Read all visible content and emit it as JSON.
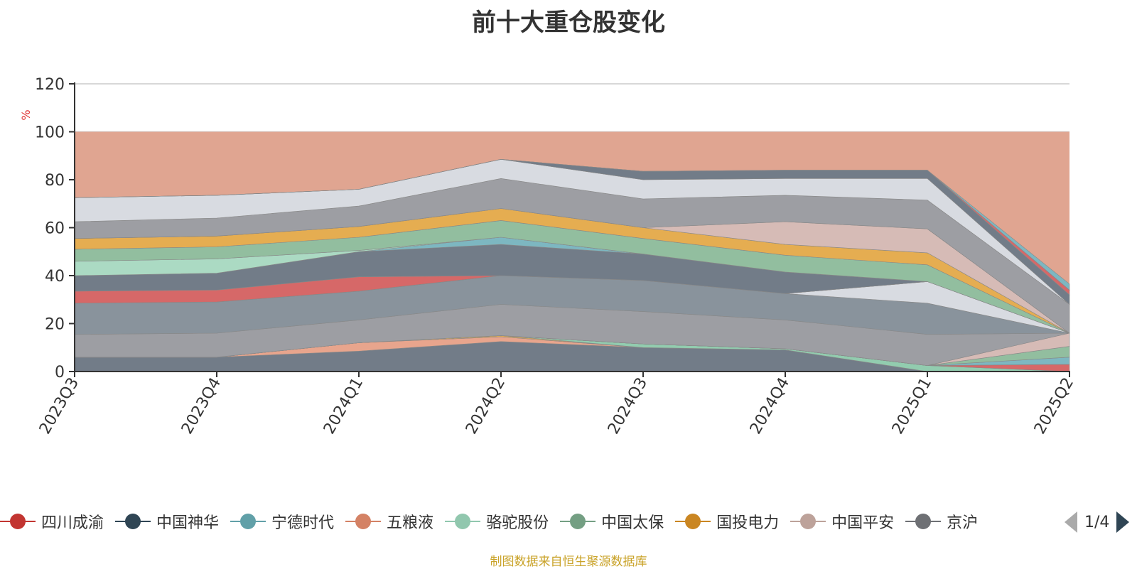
{
  "chart_data": {
    "type": "area",
    "title": "前十大重仓股变化",
    "ylabel": "%",
    "ylim": [
      0,
      120
    ],
    "yticks": [
      0,
      20,
      40,
      60,
      80,
      100,
      120
    ],
    "categories": [
      "2023Q3",
      "2023Q4",
      "2024Q1",
      "2024Q2",
      "2024Q3",
      "2024Q4",
      "2025Q1",
      "2025Q2"
    ],
    "grid": true,
    "stacked": true,
    "background_band": {
      "from": 0,
      "to": 100,
      "color": "#e0a591"
    },
    "series": [
      {
        "name": "",
        "color": "#6e7b87",
        "values": [
          6,
          6,
          8.5,
          12.5,
          10,
          9,
          0,
          0
        ]
      },
      {
        "name": "",
        "color": "#e8a58c",
        "values": [
          0,
          0,
          3.5,
          2,
          0,
          0,
          0,
          0
        ]
      },
      {
        "name": "",
        "color": "#e5ad4e",
        "values": [
          0,
          0,
          0,
          0.5,
          0,
          0,
          0,
          0
        ]
      },
      {
        "name": "",
        "color": "#90cdb0",
        "values": [
          0,
          0,
          0,
          0,
          1.5,
          0.5,
          2.5,
          0
        ]
      },
      {
        "name": "",
        "color": "#d66666",
        "values": [
          0,
          0,
          0,
          0,
          0,
          0,
          0,
          3
        ]
      },
      {
        "name": "",
        "color": "#7ab8c2",
        "values": [
          0,
          0,
          0,
          0,
          0,
          0,
          0,
          3
        ]
      },
      {
        "name": "",
        "color": "#8fbf9f",
        "values": [
          0,
          0,
          0,
          0,
          0,
          0,
          0,
          4.5
        ]
      },
      {
        "name": "",
        "color": "#d6bcb7",
        "values": [
          0,
          0,
          0,
          0,
          0,
          0,
          0,
          5.5
        ]
      },
      {
        "name": "",
        "color": "#9b9ea3",
        "values": [
          9.5,
          10,
          9.5,
          13,
          13.5,
          12,
          13,
          0
        ]
      },
      {
        "name": "",
        "color": "#86939c",
        "values": [
          13,
          13,
          12,
          12,
          13,
          11,
          13,
          0
        ]
      },
      {
        "name": "",
        "color": "#d8dde3",
        "values": [
          0,
          0,
          0,
          0,
          0,
          0,
          9,
          0
        ]
      },
      {
        "name": "",
        "color": "#d66666",
        "values": [
          5,
          5,
          6,
          0,
          0,
          0,
          0,
          0
        ]
      },
      {
        "name": "",
        "color": "#6e7b87",
        "values": [
          6.5,
          7,
          10.5,
          13,
          11,
          9,
          0,
          0
        ]
      },
      {
        "name": "",
        "color": "#7ab8c2",
        "values": [
          0,
          0,
          0,
          3,
          0,
          0,
          0,
          0
        ]
      },
      {
        "name": "",
        "color": "#a9dcc4",
        "values": [
          6,
          6,
          0.5,
          0,
          0,
          0,
          0,
          0
        ]
      },
      {
        "name": "",
        "color": "#8fbf9f",
        "values": [
          5,
          5,
          5.5,
          7,
          6.5,
          7,
          7,
          0
        ]
      },
      {
        "name": "",
        "color": "#e5ad4e",
        "values": [
          4.5,
          4.5,
          4.5,
          5,
          4.5,
          4.5,
          5,
          0
        ]
      },
      {
        "name": "",
        "color": "#d6bcb7",
        "values": [
          0,
          0,
          0,
          0,
          0,
          9.5,
          10,
          0
        ]
      },
      {
        "name": "",
        "color": "#9b9ea3",
        "values": [
          7,
          7.5,
          8.5,
          12.5,
          12,
          11,
          12,
          12
        ]
      },
      {
        "name": "",
        "color": "#d8dde3",
        "values": [
          10,
          9.5,
          7,
          8,
          8,
          7,
          9,
          0
        ]
      },
      {
        "name": "",
        "color": "#6e7b87",
        "values": [
          0,
          0,
          0,
          0,
          3.5,
          3.5,
          3.5,
          4
        ]
      },
      {
        "name": "",
        "color": "#d66666",
        "values": [
          0,
          0,
          0,
          0,
          0,
          0,
          0,
          2
        ]
      },
      {
        "name": "",
        "color": "#7ab8c2",
        "values": [
          0,
          0,
          0,
          0,
          0,
          0,
          0,
          2.5
        ]
      }
    ]
  },
  "legend": {
    "items": [
      {
        "label": "四川成渝",
        "color": "#c23531"
      },
      {
        "label": "中国神华",
        "color": "#2f4554"
      },
      {
        "label": "宁德时代",
        "color": "#61a0a8"
      },
      {
        "label": "五粮液",
        "color": "#d48265"
      },
      {
        "label": "骆驼股份",
        "color": "#91c7ae"
      },
      {
        "label": "中国太保",
        "color": "#749f83"
      },
      {
        "label": "国投电力",
        "color": "#ca8622"
      },
      {
        "label": "中国平安",
        "color": "#bda29a"
      },
      {
        "label": "京沪",
        "color": "#6e7074"
      }
    ],
    "page": "1/4"
  },
  "source_note": "制图数据来自恒生聚源数据库"
}
